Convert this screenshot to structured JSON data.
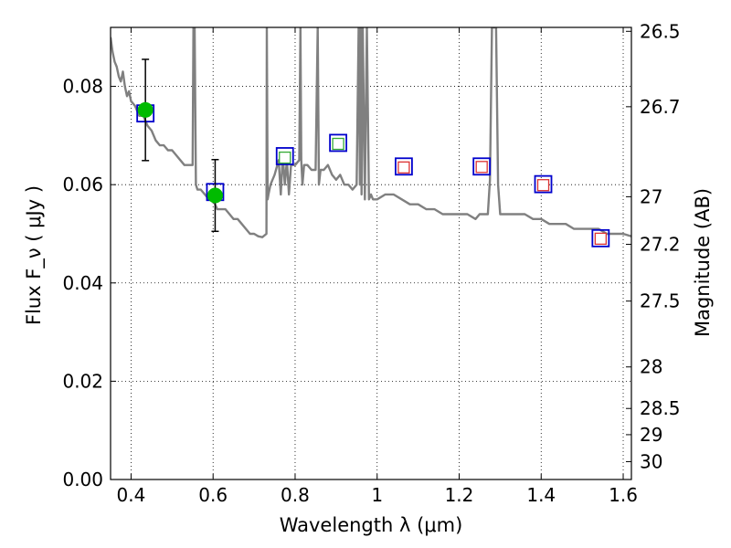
{
  "chart_data": {
    "type": "scatter",
    "xlabel": "Wavelength  λ (μm)",
    "ylabel": "Flux  F_ν  ( μJy )",
    "ylabel_right": "Magnitude (AB)",
    "xlim": [
      0.35,
      1.62
    ],
    "ylim": [
      0.0,
      0.092
    ],
    "grid": true,
    "x_ticks": [
      {
        "value": 0.4,
        "label": "0.4"
      },
      {
        "value": 0.6,
        "label": "0.6"
      },
      {
        "value": 0.8,
        "label": "0.8"
      },
      {
        "value": 1.0,
        "label": "1"
      },
      {
        "value": 1.2,
        "label": "1.2"
      },
      {
        "value": 1.4,
        "label": "1.4"
      },
      {
        "value": 1.6,
        "label": "1.6"
      }
    ],
    "y_ticks": [
      {
        "value": 0.0,
        "label": "0.00"
      },
      {
        "value": 0.02,
        "label": "0.02"
      },
      {
        "value": 0.04,
        "label": "0.04"
      },
      {
        "value": 0.06,
        "label": "0.06"
      },
      {
        "value": 0.08,
        "label": "0.08"
      }
    ],
    "right_ticks": [
      {
        "value": 26.5,
        "label": "26.5"
      },
      {
        "value": 26.7,
        "label": "26.7"
      },
      {
        "value": 27.0,
        "label": "27"
      },
      {
        "value": 27.2,
        "label": "27.2"
      },
      {
        "value": 27.5,
        "label": "27.5"
      },
      {
        "value": 28.0,
        "label": "28"
      },
      {
        "value": 28.5,
        "label": "28.5"
      },
      {
        "value": 29.0,
        "label": "29"
      },
      {
        "value": 30.0,
        "label": "30"
      }
    ],
    "series": [
      {
        "kind": "model_spectrum",
        "color": "#808080",
        "x": [
          0.35,
          0.355,
          0.36,
          0.365,
          0.37,
          0.375,
          0.38,
          0.385,
          0.39,
          0.395,
          0.4,
          0.41,
          0.42,
          0.43,
          0.44,
          0.45,
          0.46,
          0.47,
          0.48,
          0.49,
          0.5,
          0.51,
          0.52,
          0.53,
          0.54,
          0.55,
          0.552,
          0.555,
          0.558,
          0.562,
          0.57,
          0.58,
          0.59,
          0.6,
          0.61,
          0.62,
          0.63,
          0.64,
          0.65,
          0.66,
          0.67,
          0.68,
          0.69,
          0.7,
          0.71,
          0.72,
          0.73,
          0.731,
          0.733,
          0.735,
          0.74,
          0.75,
          0.76,
          0.765,
          0.77,
          0.775,
          0.78,
          0.785,
          0.79,
          0.8,
          0.81,
          0.813,
          0.815,
          0.818,
          0.822,
          0.83,
          0.84,
          0.85,
          0.855,
          0.858,
          0.862,
          0.87,
          0.88,
          0.89,
          0.9,
          0.91,
          0.92,
          0.93,
          0.94,
          0.95,
          0.955,
          0.958,
          0.96,
          0.962,
          0.965,
          0.97,
          0.975,
          0.98,
          0.985,
          0.99,
          1.0,
          1.02,
          1.04,
          1.06,
          1.08,
          1.1,
          1.12,
          1.14,
          1.16,
          1.18,
          1.2,
          1.22,
          1.24,
          1.25,
          1.26,
          1.27,
          1.275,
          1.28,
          1.285,
          1.29,
          1.295,
          1.3,
          1.32,
          1.34,
          1.36,
          1.38,
          1.4,
          1.42,
          1.44,
          1.46,
          1.48,
          1.5,
          1.52,
          1.54,
          1.56,
          1.58,
          1.6,
          1.62
        ],
        "y": [
          0.09,
          0.087,
          0.085,
          0.084,
          0.082,
          0.081,
          0.083,
          0.08,
          0.078,
          0.079,
          0.077,
          0.076,
          0.074,
          0.074,
          0.072,
          0.071,
          0.069,
          0.068,
          0.068,
          0.067,
          0.067,
          0.066,
          0.065,
          0.064,
          0.064,
          0.064,
          0.092,
          0.092,
          0.06,
          0.059,
          0.059,
          0.058,
          0.057,
          0.057,
          0.055,
          0.055,
          0.055,
          0.054,
          0.053,
          0.053,
          0.052,
          0.051,
          0.05,
          0.05,
          0.0495,
          0.0493,
          0.05,
          0.092,
          0.057,
          0.058,
          0.06,
          0.062,
          0.065,
          0.058,
          0.066,
          0.06,
          0.065,
          0.058,
          0.064,
          0.064,
          0.065,
          0.092,
          0.065,
          0.06,
          0.064,
          0.064,
          0.063,
          0.063,
          0.092,
          0.06,
          0.063,
          0.063,
          0.064,
          0.062,
          0.061,
          0.062,
          0.06,
          0.06,
          0.059,
          0.06,
          0.092,
          0.06,
          0.092,
          0.058,
          0.092,
          0.057,
          0.092,
          0.057,
          0.058,
          0.057,
          0.057,
          0.058,
          0.058,
          0.057,
          0.056,
          0.056,
          0.055,
          0.055,
          0.054,
          0.054,
          0.054,
          0.054,
          0.053,
          0.054,
          0.054,
          0.054,
          0.061,
          0.092,
          0.092,
          0.092,
          0.06,
          0.054,
          0.054,
          0.054,
          0.054,
          0.053,
          0.053,
          0.052,
          0.052,
          0.052,
          0.051,
          0.051,
          0.051,
          0.051,
          0.05,
          0.05,
          0.05,
          0.0495
        ]
      },
      {
        "kind": "observed",
        "marker": "circle",
        "color": "#00bb00",
        "x": [
          0.435,
          0.605
        ],
        "y": [
          0.0752,
          0.0578
        ],
        "yerr": [
          0.0103,
          0.0073
        ]
      },
      {
        "kind": "model_bands",
        "marker": "square",
        "color": "#0000cc",
        "x": [
          0.435,
          0.605,
          0.775,
          0.905,
          1.065,
          1.255,
          1.405,
          1.545
        ],
        "y": [
          0.0745,
          0.0585,
          0.0658,
          0.0685,
          0.0637,
          0.0637,
          0.0601,
          0.0491
        ]
      },
      {
        "kind": "upper_limit_bands",
        "marker": "small-square",
        "color": "#33aa33",
        "x": [
          0.775,
          0.905
        ],
        "y": [
          0.0655,
          0.0683
        ]
      },
      {
        "kind": "upper_limit_bands",
        "marker": "small-square",
        "color": "#dd3333",
        "x": [
          1.065,
          1.255,
          1.405,
          1.545
        ],
        "y": [
          0.0635,
          0.0636,
          0.0599,
          0.049
        ]
      }
    ]
  }
}
